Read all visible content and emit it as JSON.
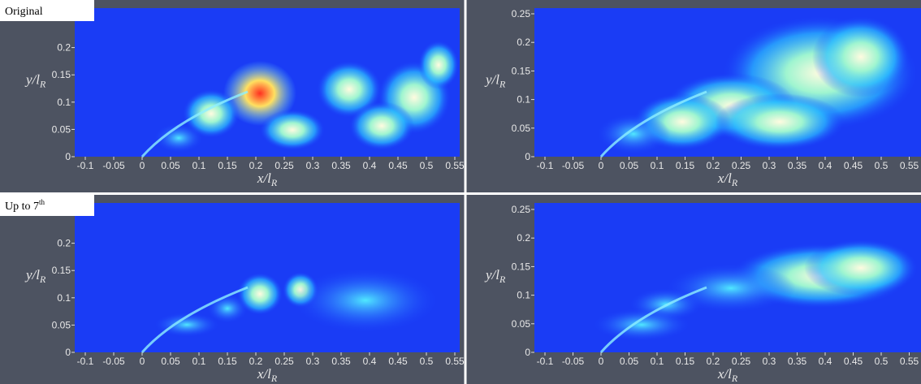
{
  "panels": [
    {
      "label": "Original",
      "xticks": [
        "-0.1",
        "-0.05",
        "0",
        "0.05",
        "0.1",
        "0.15",
        "0.2",
        "0.25",
        "0.3",
        "0.35",
        "0.4",
        "0.45",
        "0.5",
        "0.55"
      ],
      "yticks": [
        "0",
        "0.05",
        "0.1",
        "0.15",
        "0.2"
      ]
    },
    {
      "xticks": [
        "-0.1",
        "-0.05",
        "0",
        "0.05",
        "0.1",
        "0.15",
        "0.2",
        "0.25",
        "0.3",
        "0.35",
        "0.4",
        "0.45",
        "0.5",
        "0.55"
      ],
      "yticks": [
        "0",
        "0.05",
        "0.1",
        "0.15",
        "0.2",
        "0.25"
      ]
    },
    {
      "label": "Up to 7",
      "label_sup": "th",
      "xticks": [
        "-0.1",
        "-0.05",
        "0",
        "0.05",
        "0.1",
        "0.15",
        "0.2",
        "0.25",
        "0.3",
        "0.35",
        "0.4",
        "0.45",
        "0.5",
        "0.55"
      ],
      "yticks": [
        "0",
        "0.05",
        "0.1",
        "0.15",
        "0.2"
      ]
    },
    {
      "xticks": [
        "-0.1",
        "-0.05",
        "0",
        "0.05",
        "0.1",
        "0.15",
        "0.2",
        "0.25",
        "0.3",
        "0.35",
        "0.4",
        "0.45",
        "0.5",
        "0.55"
      ],
      "yticks": [
        "0",
        "0.05",
        "0.1",
        "0.15",
        "0.2",
        "0.25"
      ]
    }
  ],
  "axis_labels": {
    "x": "x/l",
    "x_sub": "R",
    "y": "y/l",
    "y_sub": "R"
  }
}
